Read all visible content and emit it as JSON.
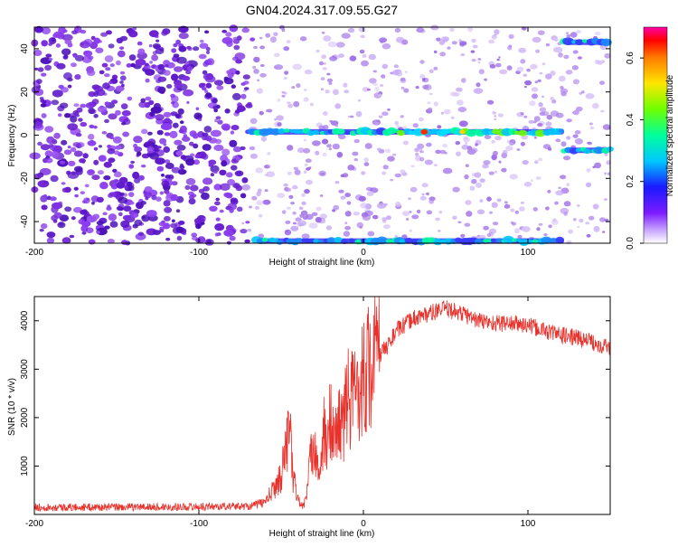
{
  "title": "GN04.2024.317.09.55.G27",
  "chart_data": [
    {
      "type": "heatmap",
      "xlabel": "Height of straight line (km)",
      "ylabel": "Frequency (Hz)",
      "xlim": [
        -200,
        150
      ],
      "ylim": [
        -50,
        50
      ],
      "x_ticks": [
        -200,
        -100,
        0,
        100
      ],
      "y_ticks": [
        -40,
        -20,
        0,
        20,
        40
      ],
      "colorbar": {
        "label": "Normalized spectral amplitude",
        "range": [
          0,
          0.7
        ],
        "ticks": [
          0.0,
          0.2,
          0.4,
          0.6
        ],
        "tick_labels": [
          "0.0",
          "0.2",
          "0.4",
          "0.6"
        ]
      },
      "transition_x": -70,
      "features": [
        {
          "x_start": -70,
          "x_end": 122,
          "freq": 1.5,
          "peak_amplitude": 0.7
        },
        {
          "x_start": 122,
          "x_end": 150,
          "freq": 43,
          "peak_amplitude": 0.3
        },
        {
          "x_start": 122,
          "x_end": 150,
          "freq": -7,
          "peak_amplitude": 0.3
        },
        {
          "x_start": -65,
          "x_end": 122,
          "freq": -49,
          "peak_amplitude": 0.3
        }
      ],
      "colors": {
        "noise_dense": "#6a1fd0",
        "noise_sparse": "#b48cf0",
        "background": "#ffffff"
      }
    },
    {
      "type": "line",
      "xlabel": "Height of straight line (km)",
      "ylabel": "SNR (10 * v/v)",
      "xlim": [
        -200,
        150
      ],
      "ylim": [
        0,
        4500
      ],
      "x_ticks": [
        -200,
        -100,
        0,
        100
      ],
      "y_ticks": [
        1000,
        2000,
        3000,
        4000
      ],
      "series": [
        {
          "color": "#e8312b",
          "x": [
            -200,
            -150,
            -100,
            -70,
            -60,
            -55,
            -50,
            -47,
            -45,
            -43,
            -40,
            -37,
            -35,
            -33,
            -30,
            -28,
            -26,
            -24,
            -22,
            -20,
            -18,
            -16,
            -14,
            -12,
            -10,
            -8,
            -5,
            -2,
            0,
            5,
            10,
            15,
            20,
            25,
            30,
            40,
            50,
            60,
            70,
            80,
            90,
            100,
            110,
            120,
            130,
            140,
            150
          ],
          "values": [
            150,
            150,
            160,
            170,
            250,
            500,
            800,
            1400,
            1900,
            800,
            350,
            150,
            300,
            900,
            1600,
            1100,
            800,
            1700,
            1300,
            2100,
            1500,
            1700,
            2000,
            1800,
            2500,
            2300,
            2600,
            2700,
            2900,
            3100,
            3300,
            3500,
            3800,
            3900,
            4050,
            4150,
            4250,
            4150,
            4000,
            3950,
            3950,
            3900,
            3800,
            3700,
            3650,
            3550,
            3450
          ]
        }
      ]
    }
  ]
}
